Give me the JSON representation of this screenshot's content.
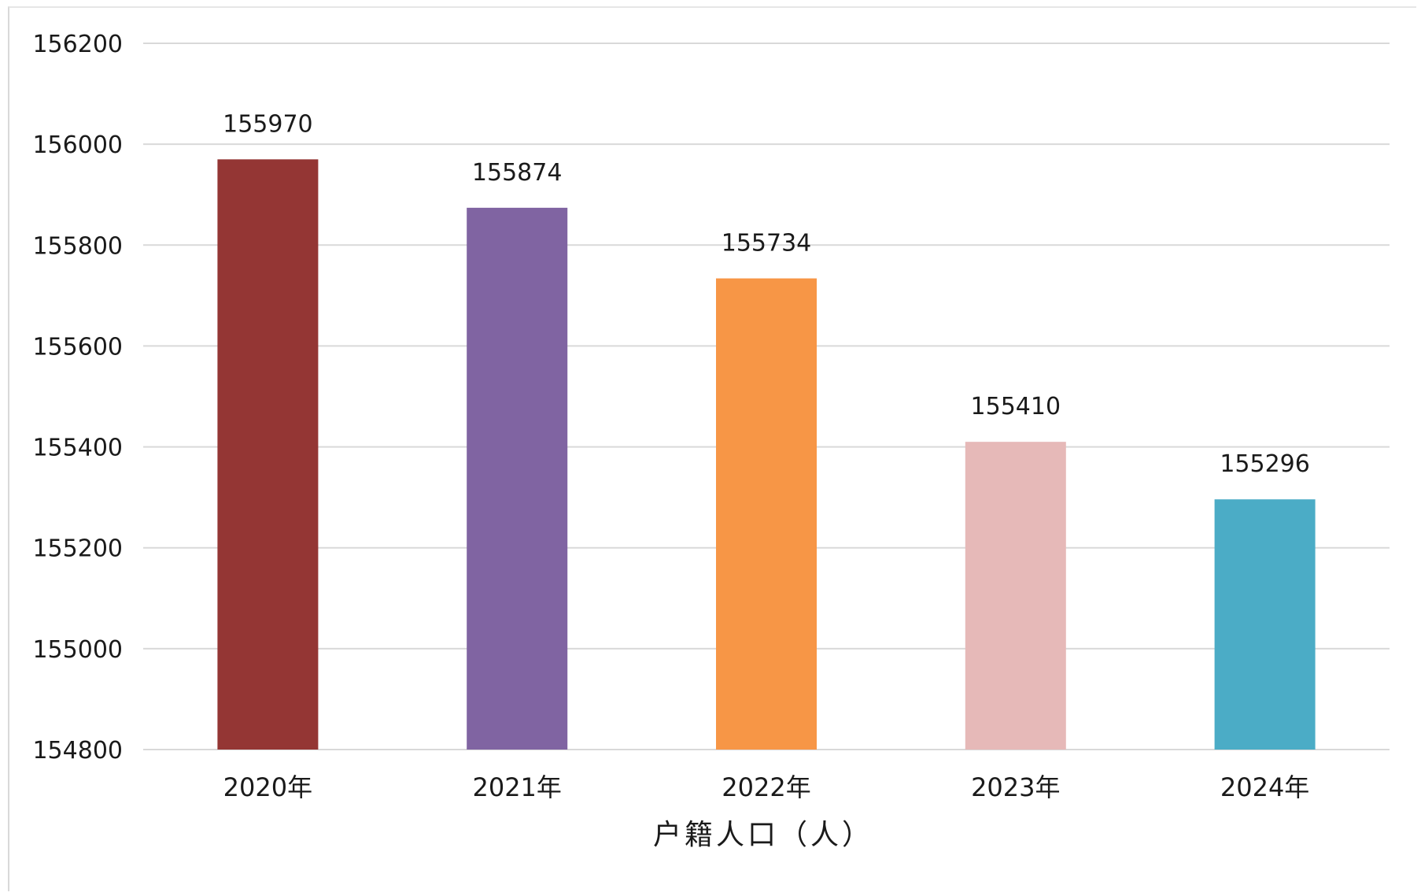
{
  "chart_data": {
    "type": "bar",
    "categories": [
      "2020年",
      "2021年",
      "2022年",
      "2023年",
      "2024年"
    ],
    "values": [
      155970,
      155874,
      155734,
      155410,
      155296
    ],
    "bar_colors": [
      "#943634",
      "#8064a2",
      "#f79646",
      "#e6b9b8",
      "#4bacc6"
    ],
    "xlabel": "户籍人口（人）",
    "ylim": [
      154800,
      156200
    ],
    "y_ticks": [
      154800,
      155000,
      155200,
      155400,
      155600,
      155800,
      156000,
      156200
    ],
    "y_tick_labels": [
      "154800",
      "155000",
      "155200",
      "155400",
      "155600",
      "155800",
      "156000",
      "156200"
    ],
    "data_labels": [
      "155970",
      "155874",
      "155734",
      "155410",
      "155296"
    ],
    "grid": true,
    "gridline_color": "#d9d9d9"
  }
}
